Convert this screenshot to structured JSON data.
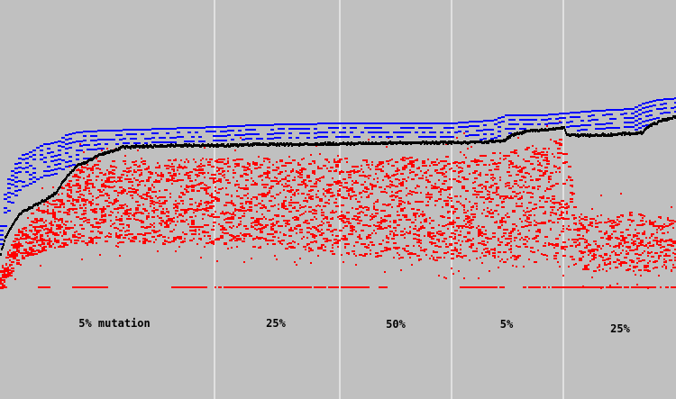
{
  "chart_data": {
    "type": "scatter",
    "title": "",
    "xlabel": "",
    "ylabel": "",
    "grid": false,
    "legend": "none",
    "colors": {
      "background": "#c0c0c0",
      "best": "#0000ff",
      "average": "#000000",
      "population": "#ff0000",
      "divider": "#ffffff"
    },
    "phases": [
      {
        "label": "5% mutation",
        "x_range": [
          0,
          238
        ]
      },
      {
        "label": "25%",
        "x_range": [
          238,
          377
        ]
      },
      {
        "label": "50%",
        "x_range": [
          377,
          501
        ]
      },
      {
        "label": "5%",
        "x_range": [
          501,
          625
        ]
      },
      {
        "label": "25%",
        "x_range": [
          625,
          750
        ]
      }
    ],
    "series": [
      {
        "key": "best",
        "points": [
          [
            0,
            250
          ],
          [
            4,
            215
          ],
          [
            8,
            198
          ],
          [
            15,
            182
          ],
          [
            22,
            172
          ],
          [
            32,
            168
          ],
          [
            45,
            160
          ],
          [
            55,
            158
          ],
          [
            65,
            156
          ],
          [
            70,
            150
          ],
          [
            80,
            147
          ],
          [
            95,
            145
          ],
          [
            120,
            144
          ],
          [
            150,
            143
          ],
          [
            180,
            142
          ],
          [
            210,
            141
          ],
          [
            238,
            140
          ],
          [
            280,
            138
          ],
          [
            320,
            137
          ],
          [
            377,
            136
          ],
          [
            420,
            136
          ],
          [
            460,
            136
          ],
          [
            501,
            136
          ],
          [
            525,
            134
          ],
          [
            545,
            133
          ],
          [
            560,
            127
          ],
          [
            600,
            127
          ],
          [
            625,
            125
          ],
          [
            660,
            122
          ],
          [
            700,
            120
          ],
          [
            715,
            113
          ],
          [
            730,
            110
          ],
          [
            750,
            108
          ]
        ]
      },
      {
        "key": "average",
        "points": [
          [
            0,
            280
          ],
          [
            5,
            262
          ],
          [
            12,
            250
          ],
          [
            18,
            240
          ],
          [
            25,
            233
          ],
          [
            35,
            228
          ],
          [
            50,
            220
          ],
          [
            62,
            212
          ],
          [
            70,
            198
          ],
          [
            78,
            190
          ],
          [
            85,
            182
          ],
          [
            95,
            178
          ],
          [
            110,
            170
          ],
          [
            125,
            166
          ],
          [
            135,
            162
          ],
          [
            160,
            161
          ],
          [
            200,
            160
          ],
          [
            238,
            160
          ],
          [
            300,
            159
          ],
          [
            377,
            158
          ],
          [
            450,
            157
          ],
          [
            501,
            157
          ],
          [
            540,
            156
          ],
          [
            558,
            155
          ],
          [
            568,
            148
          ],
          [
            585,
            144
          ],
          [
            610,
            142
          ],
          [
            625,
            141
          ],
          [
            628,
            148
          ],
          [
            650,
            149
          ],
          [
            680,
            148
          ],
          [
            712,
            146
          ],
          [
            720,
            138
          ],
          [
            735,
            132
          ],
          [
            750,
            128
          ]
        ]
      },
      {
        "key": "population",
        "top_edge": [
          [
            0,
            300
          ],
          [
            10,
            270
          ],
          [
            25,
            245
          ],
          [
            40,
            230
          ],
          [
            60,
            215
          ],
          [
            75,
            200
          ],
          [
            85,
            185
          ],
          [
            100,
            178
          ],
          [
            238,
            175
          ],
          [
            377,
            175
          ],
          [
            501,
            172
          ],
          [
            560,
            168
          ],
          [
            600,
            160
          ],
          [
            625,
            150
          ],
          [
            640,
            240
          ],
          [
            700,
            235
          ],
          [
            750,
            240
          ]
        ],
        "bottom_edge": [
          [
            0,
            320
          ],
          [
            20,
            290
          ],
          [
            40,
            280
          ],
          [
            80,
            270
          ],
          [
            238,
            270
          ],
          [
            377,
            282
          ],
          [
            501,
            290
          ],
          [
            625,
            290
          ],
          [
            650,
            300
          ],
          [
            700,
            300
          ],
          [
            750,
            300
          ]
        ],
        "floor": 318
      }
    ]
  }
}
